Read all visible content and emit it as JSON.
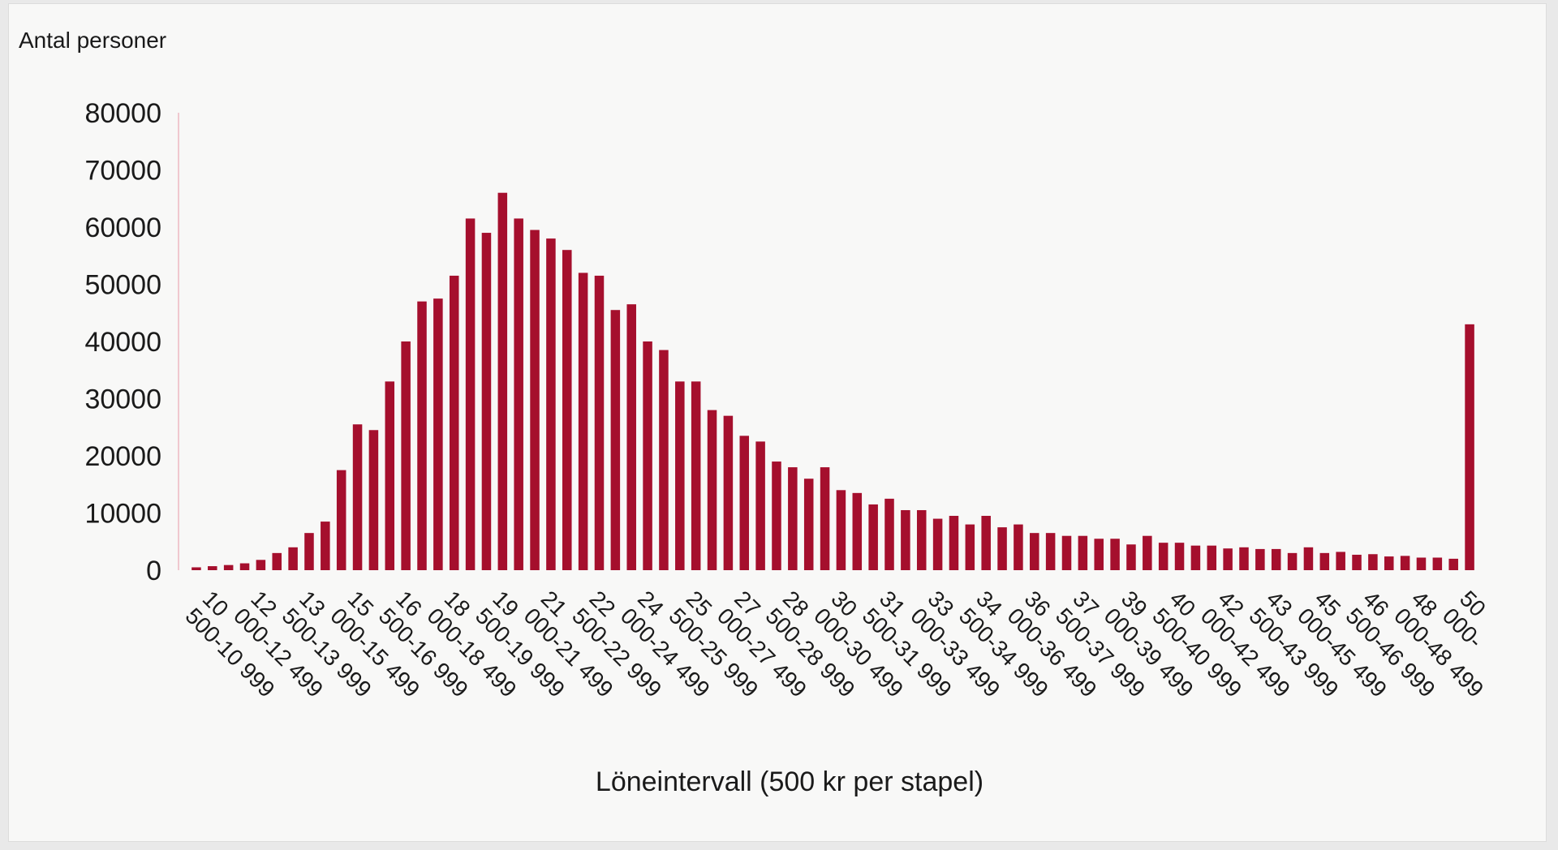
{
  "chart_data": {
    "type": "bar",
    "ylabel": "Antal personer",
    "xlabel": "Löneintervall (500 kr per stapel)",
    "ylim": [
      0,
      80000
    ],
    "yticks": [
      0,
      10000,
      20000,
      30000,
      40000,
      50000,
      60000,
      70000,
      80000
    ],
    "color": "#a50f2d",
    "tick_labels": [
      "10 500-10 999",
      "12 000-12 499",
      "13 500-13 999",
      "15 000-15 499",
      "16 500-16 999",
      "18 000-18 499",
      "19 500-19 999",
      "21 000-21 499",
      "22 500-22 999",
      "24 000-24 499",
      "25 500-25 999",
      "27 000-27 499",
      "28 500-28 999",
      "30 000-30 499",
      "31 500-31 999",
      "33 000-33 499",
      "34 500-34 999",
      "36 000-36 499",
      "37 500-37 999",
      "39 000-39 499",
      "40 500-40 999",
      "42 000-42 499",
      "43 500-43 999",
      "45 000-45 499",
      "46 500-46 999",
      "48 000-48 499",
      "50 000-"
    ],
    "values": [
      500,
      700,
      900,
      1200,
      1800,
      3000,
      4000,
      6500,
      8500,
      17500,
      25500,
      24500,
      33000,
      40000,
      47000,
      47500,
      51500,
      61500,
      59000,
      66000,
      61500,
      59500,
      58000,
      56000,
      52000,
      51500,
      45500,
      46500,
      40000,
      38500,
      33000,
      33000,
      28000,
      27000,
      23500,
      22500,
      19000,
      18000,
      16000,
      18000,
      14000,
      13500,
      11500,
      12500,
      10500,
      10500,
      9000,
      9500,
      8000,
      9500,
      7500,
      8000,
      6500,
      6500,
      6000,
      6000,
      5500,
      5500,
      4500,
      6000,
      4800,
      4800,
      4300,
      4300,
      3800,
      4000,
      3700,
      3700,
      3000,
      4000,
      3000,
      3200,
      2700,
      2800,
      2400,
      2500,
      2200,
      2200,
      2000,
      43000
    ]
  }
}
